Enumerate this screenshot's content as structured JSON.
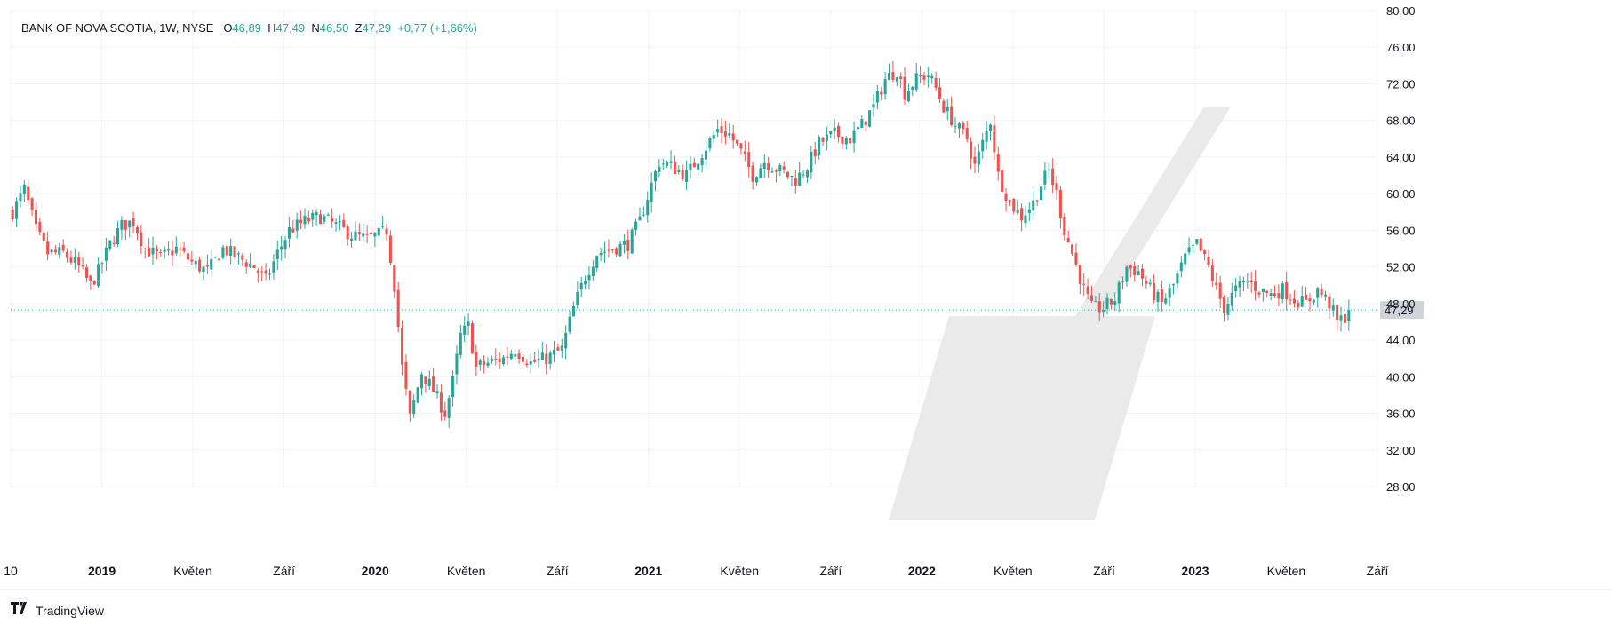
{
  "legend": {
    "symbol": "BANK OF NOVA SCOTIA, 1W, NYSE",
    "o_label": "O",
    "o_value": "46,89",
    "h_label": "H",
    "h_value": "47,49",
    "n_label": "N",
    "n_value": "46,50",
    "z_label": "Z",
    "z_value": "47,29",
    "change": "+0,77 (+1,66%)"
  },
  "footer": {
    "brand": "TradingView",
    "logo": "tradingview-logo-icon"
  },
  "price_tag": "47,29",
  "colors": {
    "up": "#26a69a",
    "down": "#ef5350",
    "grid": "#f0f3fa",
    "axis_text": "#131722",
    "watermark": "#e6e6e6",
    "price_line": "#26a69a",
    "price_tag_bg": "#d0d3d8"
  },
  "chart_data": {
    "type": "candlestick",
    "title": "BANK OF NOVA SCOTIA, 1W, NYSE",
    "ylim": [
      28,
      80
    ],
    "y_ticks": [
      "28,00",
      "32,00",
      "36,00",
      "40,00",
      "44,00",
      "48,00",
      "52,00",
      "56,00",
      "60,00",
      "64,00",
      "68,00",
      "72,00",
      "76,00",
      "80,00"
    ],
    "x_ticks": [
      {
        "label": "10",
        "t": 0.0,
        "bold": false
      },
      {
        "label": "2019",
        "t": 0.0667,
        "bold": true
      },
      {
        "label": "Květen",
        "t": 0.1333,
        "bold": false
      },
      {
        "label": "Září",
        "t": 0.2,
        "bold": false
      },
      {
        "label": "2020",
        "t": 0.2667,
        "bold": true
      },
      {
        "label": "Květen",
        "t": 0.3333,
        "bold": false
      },
      {
        "label": "Září",
        "t": 0.4,
        "bold": false
      },
      {
        "label": "2021",
        "t": 0.4667,
        "bold": true
      },
      {
        "label": "Květen",
        "t": 0.5333,
        "bold": false
      },
      {
        "label": "Září",
        "t": 0.6,
        "bold": false
      },
      {
        "label": "2022",
        "t": 0.6667,
        "bold": true
      },
      {
        "label": "Květen",
        "t": 0.7333,
        "bold": false
      },
      {
        "label": "Září",
        "t": 0.8,
        "bold": false
      },
      {
        "label": "2023",
        "t": 0.8667,
        "bold": true
      },
      {
        "label": "Květen",
        "t": 0.9333,
        "bold": false
      },
      {
        "label": "Září",
        "t": 1.0,
        "bold": false
      }
    ],
    "last_close": 47.29,
    "anchors": [
      [
        0,
        58.0
      ],
      [
        3,
        60.5
      ],
      [
        6,
        56.0
      ],
      [
        9,
        53.5
      ],
      [
        13,
        53.5
      ],
      [
        17,
        52.0
      ],
      [
        20,
        50.0
      ],
      [
        22,
        51.5
      ],
      [
        25,
        54.5
      ],
      [
        28,
        56.5
      ],
      [
        31,
        57.0
      ],
      [
        34,
        54.0
      ],
      [
        38,
        53.0
      ],
      [
        42,
        54.0
      ],
      [
        46,
        52.5
      ],
      [
        50,
        51.5
      ],
      [
        54,
        54.0
      ],
      [
        58,
        53.0
      ],
      [
        62,
        52.0
      ],
      [
        65,
        50.5
      ],
      [
        68,
        53.5
      ],
      [
        71,
        56.0
      ],
      [
        75,
        57.0
      ],
      [
        79,
        57.5
      ],
      [
        83,
        56.5
      ],
      [
        87,
        55.5
      ],
      [
        91,
        55.0
      ],
      [
        94,
        55.5
      ],
      [
        96,
        56.0
      ],
      [
        98,
        50.0
      ],
      [
        100,
        41.0
      ],
      [
        102,
        35.5
      ],
      [
        105,
        40.5
      ],
      [
        108,
        38.5
      ],
      [
        111,
        36.0
      ],
      [
        113,
        39.5
      ],
      [
        115,
        44.5
      ],
      [
        117,
        45.5
      ],
      [
        119,
        41.0
      ],
      [
        122,
        41.5
      ],
      [
        126,
        42.0
      ],
      [
        129,
        43.0
      ],
      [
        133,
        41.5
      ],
      [
        137,
        42.0
      ],
      [
        141,
        43.0
      ],
      [
        144,
        47.5
      ],
      [
        147,
        51.0
      ],
      [
        150,
        53.5
      ],
      [
        154,
        54.0
      ],
      [
        158,
        54.5
      ],
      [
        161,
        57.0
      ],
      [
        164,
        61.0
      ],
      [
        166,
        63.5
      ],
      [
        169,
        63.0
      ],
      [
        173,
        62.0
      ],
      [
        177,
        64.5
      ],
      [
        181,
        67.0
      ],
      [
        184,
        66.5
      ],
      [
        187,
        64.5
      ],
      [
        190,
        62.0
      ],
      [
        193,
        63.5
      ],
      [
        197,
        62.5
      ],
      [
        201,
        61.5
      ],
      [
        204,
        63.0
      ],
      [
        207,
        65.5
      ],
      [
        211,
        66.5
      ],
      [
        215,
        66.0
      ],
      [
        218,
        67.5
      ],
      [
        221,
        69.5
      ],
      [
        224,
        72.5
      ],
      [
        227,
        73.5
      ],
      [
        229,
        71.0
      ],
      [
        232,
        72.5
      ],
      [
        235,
        73.0
      ],
      [
        237,
        71.5
      ],
      [
        239,
        69.5
      ],
      [
        242,
        67.5
      ],
      [
        245,
        66.0
      ],
      [
        247,
        63.0
      ],
      [
        249,
        65.5
      ],
      [
        251,
        68.0
      ],
      [
        253,
        62.0
      ],
      [
        256,
        59.0
      ],
      [
        259,
        57.5
      ],
      [
        262,
        59.0
      ],
      [
        264,
        61.0
      ],
      [
        266,
        62.5
      ],
      [
        268,
        60.0
      ],
      [
        270,
        56.0
      ],
      [
        272,
        53.5
      ],
      [
        275,
        49.5
      ],
      [
        277,
        47.5
      ],
      [
        280,
        47.5
      ],
      [
        283,
        48.5
      ],
      [
        286,
        52.0
      ],
      [
        289,
        51.5
      ],
      [
        292,
        49.5
      ],
      [
        295,
        48.0
      ],
      [
        298,
        50.0
      ],
      [
        301,
        53.0
      ],
      [
        304,
        54.5
      ],
      [
        307,
        52.0
      ],
      [
        309,
        49.5
      ],
      [
        311,
        47.5
      ],
      [
        314,
        49.5
      ],
      [
        317,
        50.5
      ],
      [
        320,
        49.5
      ],
      [
        323,
        49.0
      ],
      [
        326,
        49.5
      ],
      [
        329,
        48.5
      ],
      [
        332,
        48.0
      ],
      [
        335,
        49.5
      ],
      [
        338,
        48.0
      ],
      [
        340,
        46.0
      ],
      [
        342,
        46.5
      ],
      [
        343,
        47.29
      ]
    ]
  }
}
